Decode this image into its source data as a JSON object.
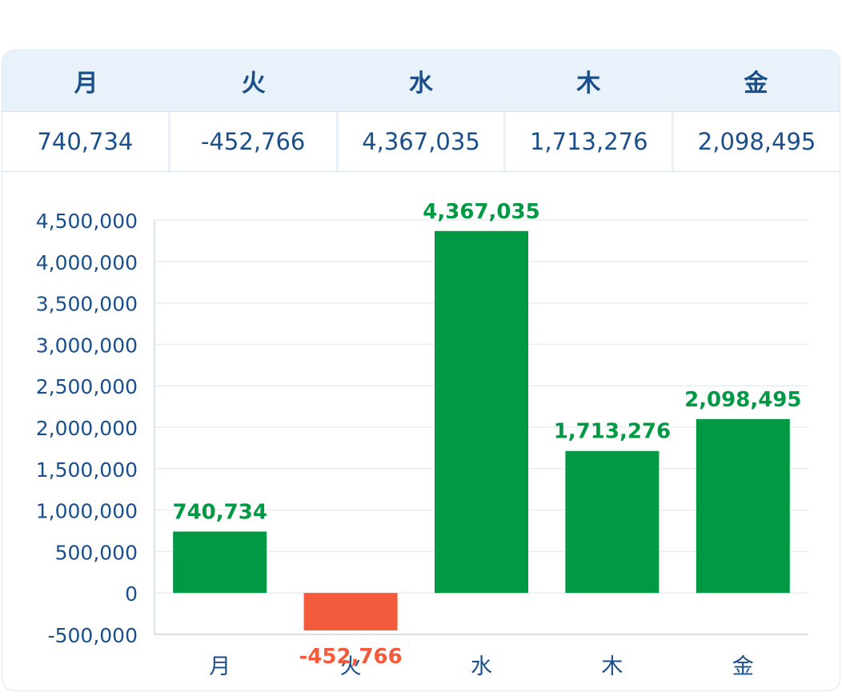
{
  "table": {
    "headers": [
      "月",
      "火",
      "水",
      "木",
      "金"
    ],
    "values": [
      "740,734",
      "-452,766",
      "4,367,035",
      "1,713,276",
      "2,098,495"
    ]
  },
  "colors": {
    "positive": "#019943",
    "negative": "#f45a3c",
    "axis_text": "#1a4f8b",
    "grid": "#e8edf2",
    "header_bg": "#e9f2fb"
  },
  "chart_data": {
    "type": "bar",
    "categories": [
      "月",
      "火",
      "水",
      "木",
      "金"
    ],
    "values": [
      740734,
      -452766,
      4367035,
      1713276,
      2098495
    ],
    "data_labels": [
      "740,734",
      "-452,766",
      "4,367,035",
      "1,713,276",
      "2,098,495"
    ],
    "y_ticks": [
      -500000,
      0,
      500000,
      1000000,
      1500000,
      2000000,
      2500000,
      3000000,
      3500000,
      4000000,
      4500000
    ],
    "y_tick_labels": [
      "-500,000",
      "0",
      "500,000",
      "1,000,000",
      "1,500,000",
      "2,000,000",
      "2,500,000",
      "3,000,000",
      "3,500,000",
      "4,000,000",
      "4,500,000"
    ],
    "ylim": [
      -500000,
      4500000
    ],
    "grid": true,
    "title": "",
    "xlabel": "",
    "ylabel": ""
  }
}
